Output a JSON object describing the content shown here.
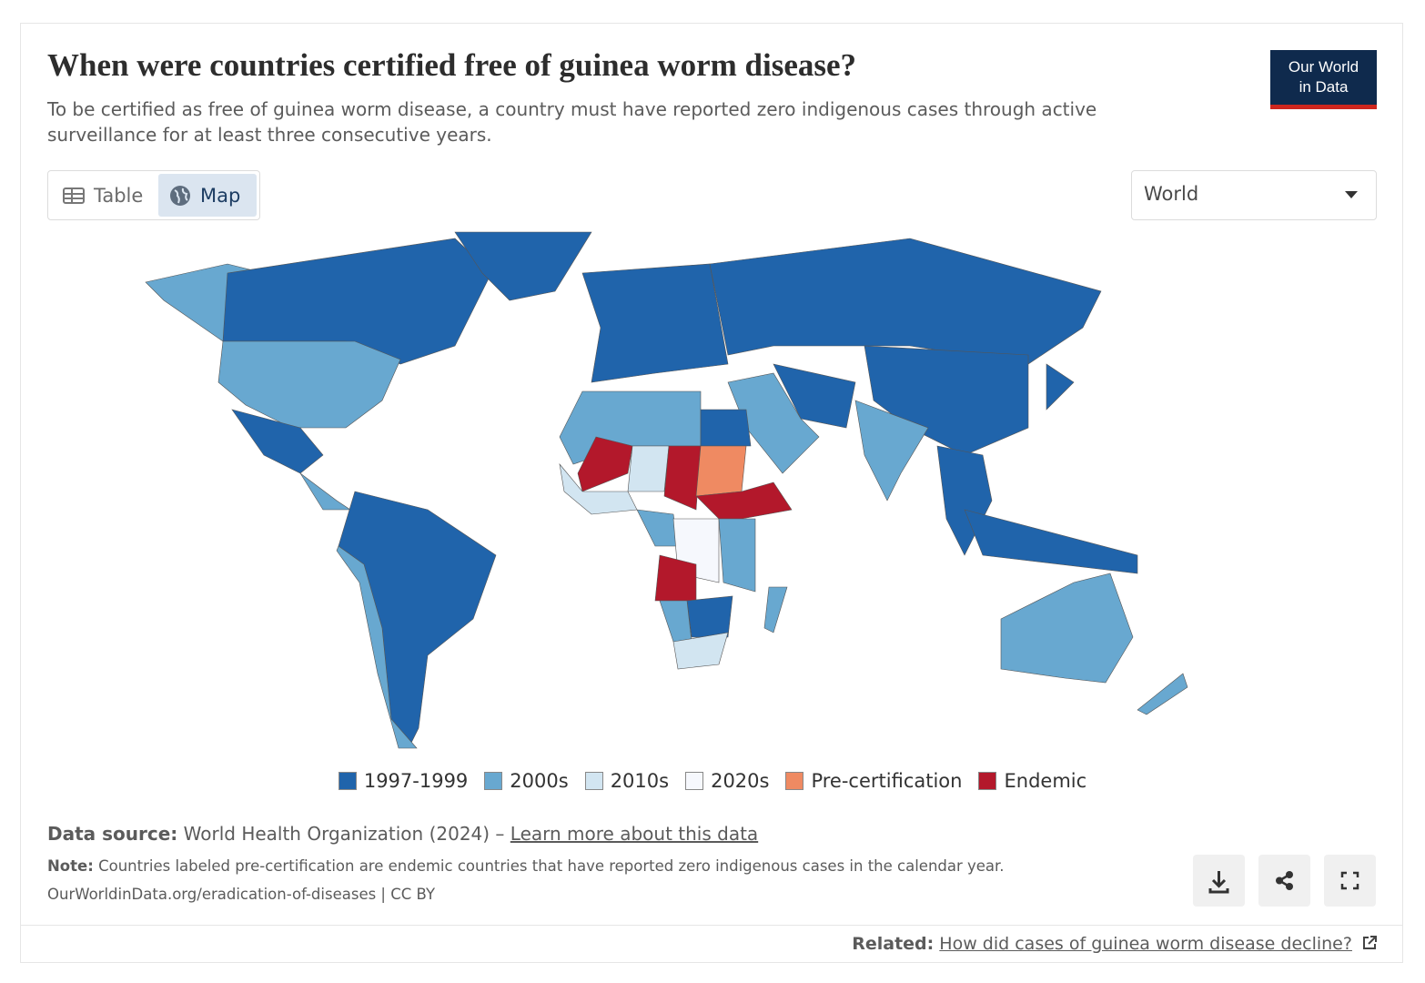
{
  "header": {
    "title": "When were countries certified free of guinea worm disease?",
    "subtitle": "To be certified as free of guinea worm disease, a country must have reported zero indigenous cases through active surveillance for at least three consecutive years."
  },
  "logo": {
    "line1": "Our World",
    "line2": "in Data"
  },
  "tabs": [
    "Table",
    "Map"
  ],
  "entity_selector": "World",
  "legend": [
    {
      "label": "1997-1999",
      "color": "#2064ab"
    },
    {
      "label": "2000s",
      "color": "#68a8d0"
    },
    {
      "label": "2010s",
      "color": "#d2e5f1"
    },
    {
      "label": "2020s",
      "color": "#f6f8fd"
    },
    {
      "label": "Pre-certification",
      "color": "#ef8a62"
    },
    {
      "label": "Endemic",
      "color": "#b3182b"
    }
  ],
  "footer": {
    "source_label": "Data source:",
    "source_text": "World Health Organization (2024) –",
    "source_link": "Learn more about this data",
    "note_label": "Note:",
    "note_text": "Countries labeled pre-certification are endemic countries that have reported zero indigenous cases in the calendar year.",
    "url": "OurWorldinData.org/eradication-of-diseases | CC BY"
  },
  "related": {
    "label": "Related:",
    "link": "How did cases of guinea worm disease decline?"
  }
}
